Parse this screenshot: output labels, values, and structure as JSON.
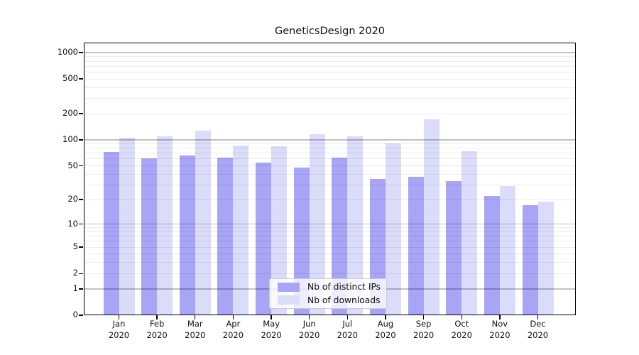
{
  "title": "GeneticsDesign 2020",
  "colors": {
    "bar_distinct_ips": "#a8a4f6",
    "bar_downloads": "#dbdbfa",
    "grid_minor": "rgba(0,0,0,0.07)",
    "grid_major": "rgba(0,0,0,0.24)",
    "axis": "#000000"
  },
  "chart_data": {
    "type": "bar",
    "title": "GeneticsDesign 2020",
    "categories": [
      "Jan 2020",
      "Feb 2020",
      "Mar 2020",
      "Apr 2020",
      "May 2020",
      "Jun 2020",
      "Jul 2020",
      "Aug 2020",
      "Sep 2020",
      "Oct 2020",
      "Nov 2020",
      "Dec 2020"
    ],
    "months": [
      "Jan",
      "Feb",
      "Mar",
      "Apr",
      "May",
      "Jun",
      "Jul",
      "Aug",
      "Sep",
      "Oct",
      "Nov",
      "Dec"
    ],
    "year": "2020",
    "series": [
      {
        "name": "Nb of distinct IPs",
        "color": "#a8a4f6",
        "values": [
          73,
          61,
          66,
          62,
          54,
          48,
          62,
          35,
          37,
          33,
          22,
          17
        ]
      },
      {
        "name": "Nb of downloads",
        "color": "#dbdbfa",
        "values": [
          105,
          110,
          127,
          86,
          84,
          117,
          110,
          91,
          172,
          74,
          29,
          19
        ]
      }
    ],
    "xlabel": "",
    "ylabel": "",
    "y_scale": "log1p",
    "ylim": [
      0,
      1300
    ],
    "y_ticks": [
      0,
      1,
      2,
      5,
      10,
      20,
      50,
      100,
      200,
      500,
      1000
    ],
    "y_major_gridlines": [
      1,
      10,
      100,
      1000
    ],
    "y_minor_gridlines": [
      2,
      3,
      4,
      5,
      6,
      7,
      8,
      9,
      20,
      30,
      40,
      50,
      60,
      70,
      80,
      90,
      200,
      300,
      400,
      500,
      600,
      700,
      800,
      900
    ],
    "grid": "on",
    "legend_position": "bottom-center"
  }
}
